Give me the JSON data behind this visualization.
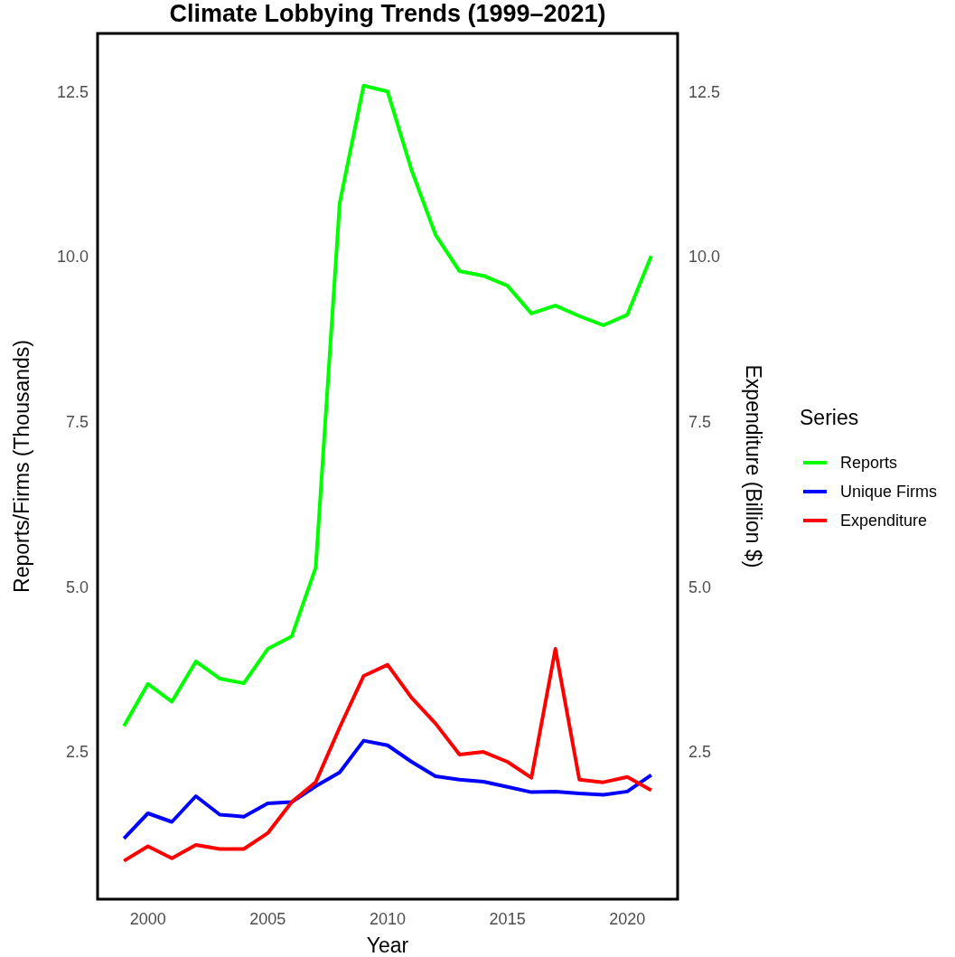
{
  "chart_data": {
    "type": "line",
    "title": "Climate Lobbying Trends (1999–2021)",
    "xlabel": "Year",
    "ylabel": "Reports/Firms (Thousands)",
    "y2label": "Expenditure (Billion $)",
    "legend_title": "Series",
    "legend": "right",
    "x": [
      1999,
      2000,
      2001,
      2002,
      2003,
      2004,
      2005,
      2006,
      2007,
      2008,
      2009,
      2010,
      2011,
      2012,
      2013,
      2014,
      2015,
      2016,
      2017,
      2018,
      2019,
      2020,
      2021
    ],
    "series": [
      {
        "name": "Reports",
        "color": "#00ff00",
        "values": [
          2.89,
          3.53,
          3.26,
          3.87,
          3.61,
          3.54,
          4.06,
          4.25,
          5.29,
          10.81,
          12.59,
          12.5,
          11.31,
          10.33,
          9.78,
          9.71,
          9.56,
          9.14,
          9.26,
          9.1,
          8.96,
          9.12,
          10.01
        ]
      },
      {
        "name": "Unique Firms",
        "color": "#0000ff",
        "values": [
          1.19,
          1.57,
          1.44,
          1.83,
          1.55,
          1.52,
          1.72,
          1.74,
          1.98,
          2.19,
          2.67,
          2.6,
          2.35,
          2.13,
          2.08,
          2.05,
          1.97,
          1.89,
          1.9,
          1.87,
          1.85,
          1.9,
          2.15
        ]
      },
      {
        "name": "Expenditure",
        "color": "#ff0000",
        "values": [
          0.85,
          1.07,
          0.89,
          1.09,
          1.03,
          1.03,
          1.27,
          1.74,
          2.04,
          2.87,
          3.65,
          3.82,
          3.32,
          2.93,
          2.46,
          2.5,
          2.35,
          2.11,
          4.06,
          2.08,
          2.04,
          2.12,
          1.92
        ]
      }
    ],
    "xlim": [
      1997.9,
      2022.1
    ],
    "xticks": [
      2000,
      2005,
      2010,
      2015,
      2020
    ],
    "ylim": [
      0.27,
      13.38
    ],
    "yticks": [
      {
        "value": 2.5,
        "label": "2.5"
      },
      {
        "value": 5,
        "label": "5.0"
      },
      {
        "value": 7.5,
        "label": "7.5"
      },
      {
        "value": 10,
        "label": "10.0"
      },
      {
        "value": 12.5,
        "label": "12.5"
      }
    ],
    "y2lim": [
      0.27,
      13.38
    ],
    "y2ticks": [
      {
        "value": 2.5,
        "label": "2.5"
      },
      {
        "value": 5,
        "label": "5.0"
      },
      {
        "value": 7.5,
        "label": "7.5"
      },
      {
        "value": 10,
        "label": "10.0"
      },
      {
        "value": 12.5,
        "label": "12.5"
      }
    ],
    "grid": false,
    "marker": "none",
    "line_style": "solid"
  }
}
